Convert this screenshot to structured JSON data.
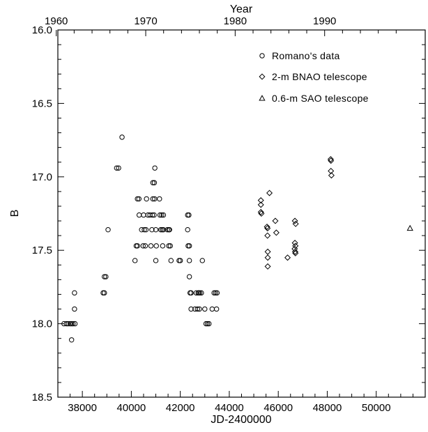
{
  "chart_data": {
    "type": "scatter",
    "xlabel": "JD-2400000",
    "ylabel": "B",
    "x2label": "Year",
    "xlim": [
      37000,
      52000
    ],
    "ylim": [
      18.5,
      16.0
    ],
    "y_inverted": true,
    "xticks": [
      38000,
      40000,
      42000,
      44000,
      46000,
      48000,
      50000
    ],
    "xtick_labels": [
      "38000",
      "40000",
      "42000",
      "44000",
      "46000",
      "48000",
      "50000"
    ],
    "yticks": [
      16.0,
      16.5,
      17.0,
      17.5,
      18.0,
      18.5
    ],
    "ytick_labels": [
      "16.0",
      "16.5",
      "17.0",
      "17.5",
      "18.0",
      "18.5"
    ],
    "year_ticks": [
      {
        "label": "1960",
        "jd": 36935
      },
      {
        "label": "1970",
        "jd": 40588
      },
      {
        "label": "1980",
        "jd": 44240
      },
      {
        "label": "1990",
        "jd": 47893
      }
    ],
    "legend_position": "top-right",
    "series": [
      {
        "name": "Romano's data",
        "marker": "circle",
        "points": [
          [
            37250,
            18.0
          ],
          [
            37350,
            18.0
          ],
          [
            37420,
            18.0
          ],
          [
            37500,
            18.0
          ],
          [
            37560,
            18.0
          ],
          [
            37620,
            18.0
          ],
          [
            37700,
            18.0
          ],
          [
            37560,
            18.11
          ],
          [
            37680,
            17.79
          ],
          [
            37680,
            17.9
          ],
          [
            38850,
            17.79
          ],
          [
            38900,
            17.79
          ],
          [
            38900,
            17.68
          ],
          [
            38960,
            17.68
          ],
          [
            39050,
            17.36
          ],
          [
            39400,
            16.94
          ],
          [
            39480,
            16.94
          ],
          [
            39620,
            16.73
          ],
          [
            40150,
            17.57
          ],
          [
            40200,
            17.47
          ],
          [
            40250,
            17.47
          ],
          [
            40250,
            17.15
          ],
          [
            40310,
            17.15
          ],
          [
            40320,
            17.26
          ],
          [
            40420,
            17.36
          ],
          [
            40480,
            17.47
          ],
          [
            40500,
            17.26
          ],
          [
            40530,
            17.36
          ],
          [
            40570,
            17.47
          ],
          [
            40600,
            17.36
          ],
          [
            40620,
            17.15
          ],
          [
            40680,
            17.26
          ],
          [
            40760,
            17.26
          ],
          [
            40800,
            17.47
          ],
          [
            40840,
            17.36
          ],
          [
            40860,
            17.26
          ],
          [
            40930,
            17.26
          ],
          [
            40880,
            17.15
          ],
          [
            40950,
            17.15
          ],
          [
            40880,
            17.04
          ],
          [
            40940,
            17.04
          ],
          [
            40960,
            16.94
          ],
          [
            41000,
            17.57
          ],
          [
            41000,
            17.36
          ],
          [
            41020,
            17.47
          ],
          [
            41150,
            17.15
          ],
          [
            41170,
            17.26
          ],
          [
            41240,
            17.26
          ],
          [
            41310,
            17.26
          ],
          [
            41200,
            17.36
          ],
          [
            41260,
            17.36
          ],
          [
            41310,
            17.36
          ],
          [
            41280,
            17.47
          ],
          [
            41470,
            17.36
          ],
          [
            41530,
            17.36
          ],
          [
            41560,
            17.36
          ],
          [
            41530,
            17.47
          ],
          [
            41590,
            17.47
          ],
          [
            41620,
            17.57
          ],
          [
            41950,
            17.57
          ],
          [
            42000,
            17.57
          ],
          [
            42300,
            17.26
          ],
          [
            42350,
            17.26
          ],
          [
            42300,
            17.36
          ],
          [
            42320,
            17.47
          ],
          [
            42370,
            17.47
          ],
          [
            42370,
            17.57
          ],
          [
            42370,
            17.68
          ],
          [
            42400,
            17.79
          ],
          [
            42440,
            17.79
          ],
          [
            42440,
            17.9
          ],
          [
            42600,
            17.9
          ],
          [
            42700,
            17.9
          ],
          [
            42780,
            17.9
          ],
          [
            42650,
            17.79
          ],
          [
            42750,
            17.79
          ],
          [
            42800,
            17.79
          ],
          [
            42860,
            17.79
          ],
          [
            42900,
            17.57
          ],
          [
            42730,
            17.79
          ],
          [
            43000,
            17.9
          ],
          [
            43050,
            18.0
          ],
          [
            43110,
            18.0
          ],
          [
            43170,
            18.0
          ],
          [
            43300,
            17.9
          ],
          [
            43380,
            17.79
          ],
          [
            43440,
            17.79
          ],
          [
            43500,
            17.79
          ],
          [
            43480,
            17.9
          ]
        ]
      },
      {
        "name": "2-m BNAO telescope",
        "marker": "diamond",
        "points": [
          [
            45290,
            17.16
          ],
          [
            45290,
            17.19
          ],
          [
            45290,
            17.24
          ],
          [
            45310,
            17.25
          ],
          [
            45540,
            17.34
          ],
          [
            45560,
            17.35
          ],
          [
            45560,
            17.4
          ],
          [
            45570,
            17.51
          ],
          [
            45570,
            17.55
          ],
          [
            45570,
            17.61
          ],
          [
            45640,
            17.11
          ],
          [
            45880,
            17.3
          ],
          [
            45920,
            17.38
          ],
          [
            46380,
            17.55
          ],
          [
            46680,
            17.3
          ],
          [
            46710,
            17.32
          ],
          [
            46680,
            17.45
          ],
          [
            46700,
            17.47
          ],
          [
            46670,
            17.49
          ],
          [
            46690,
            17.51
          ],
          [
            46700,
            17.52
          ],
          [
            48140,
            16.88
          ],
          [
            48150,
            16.89
          ],
          [
            48150,
            16.96
          ],
          [
            48170,
            16.99
          ]
        ]
      },
      {
        "name": "0.6-m SAO telescope",
        "marker": "triangle",
        "points": [
          [
            51380,
            17.35
          ]
        ]
      }
    ]
  }
}
